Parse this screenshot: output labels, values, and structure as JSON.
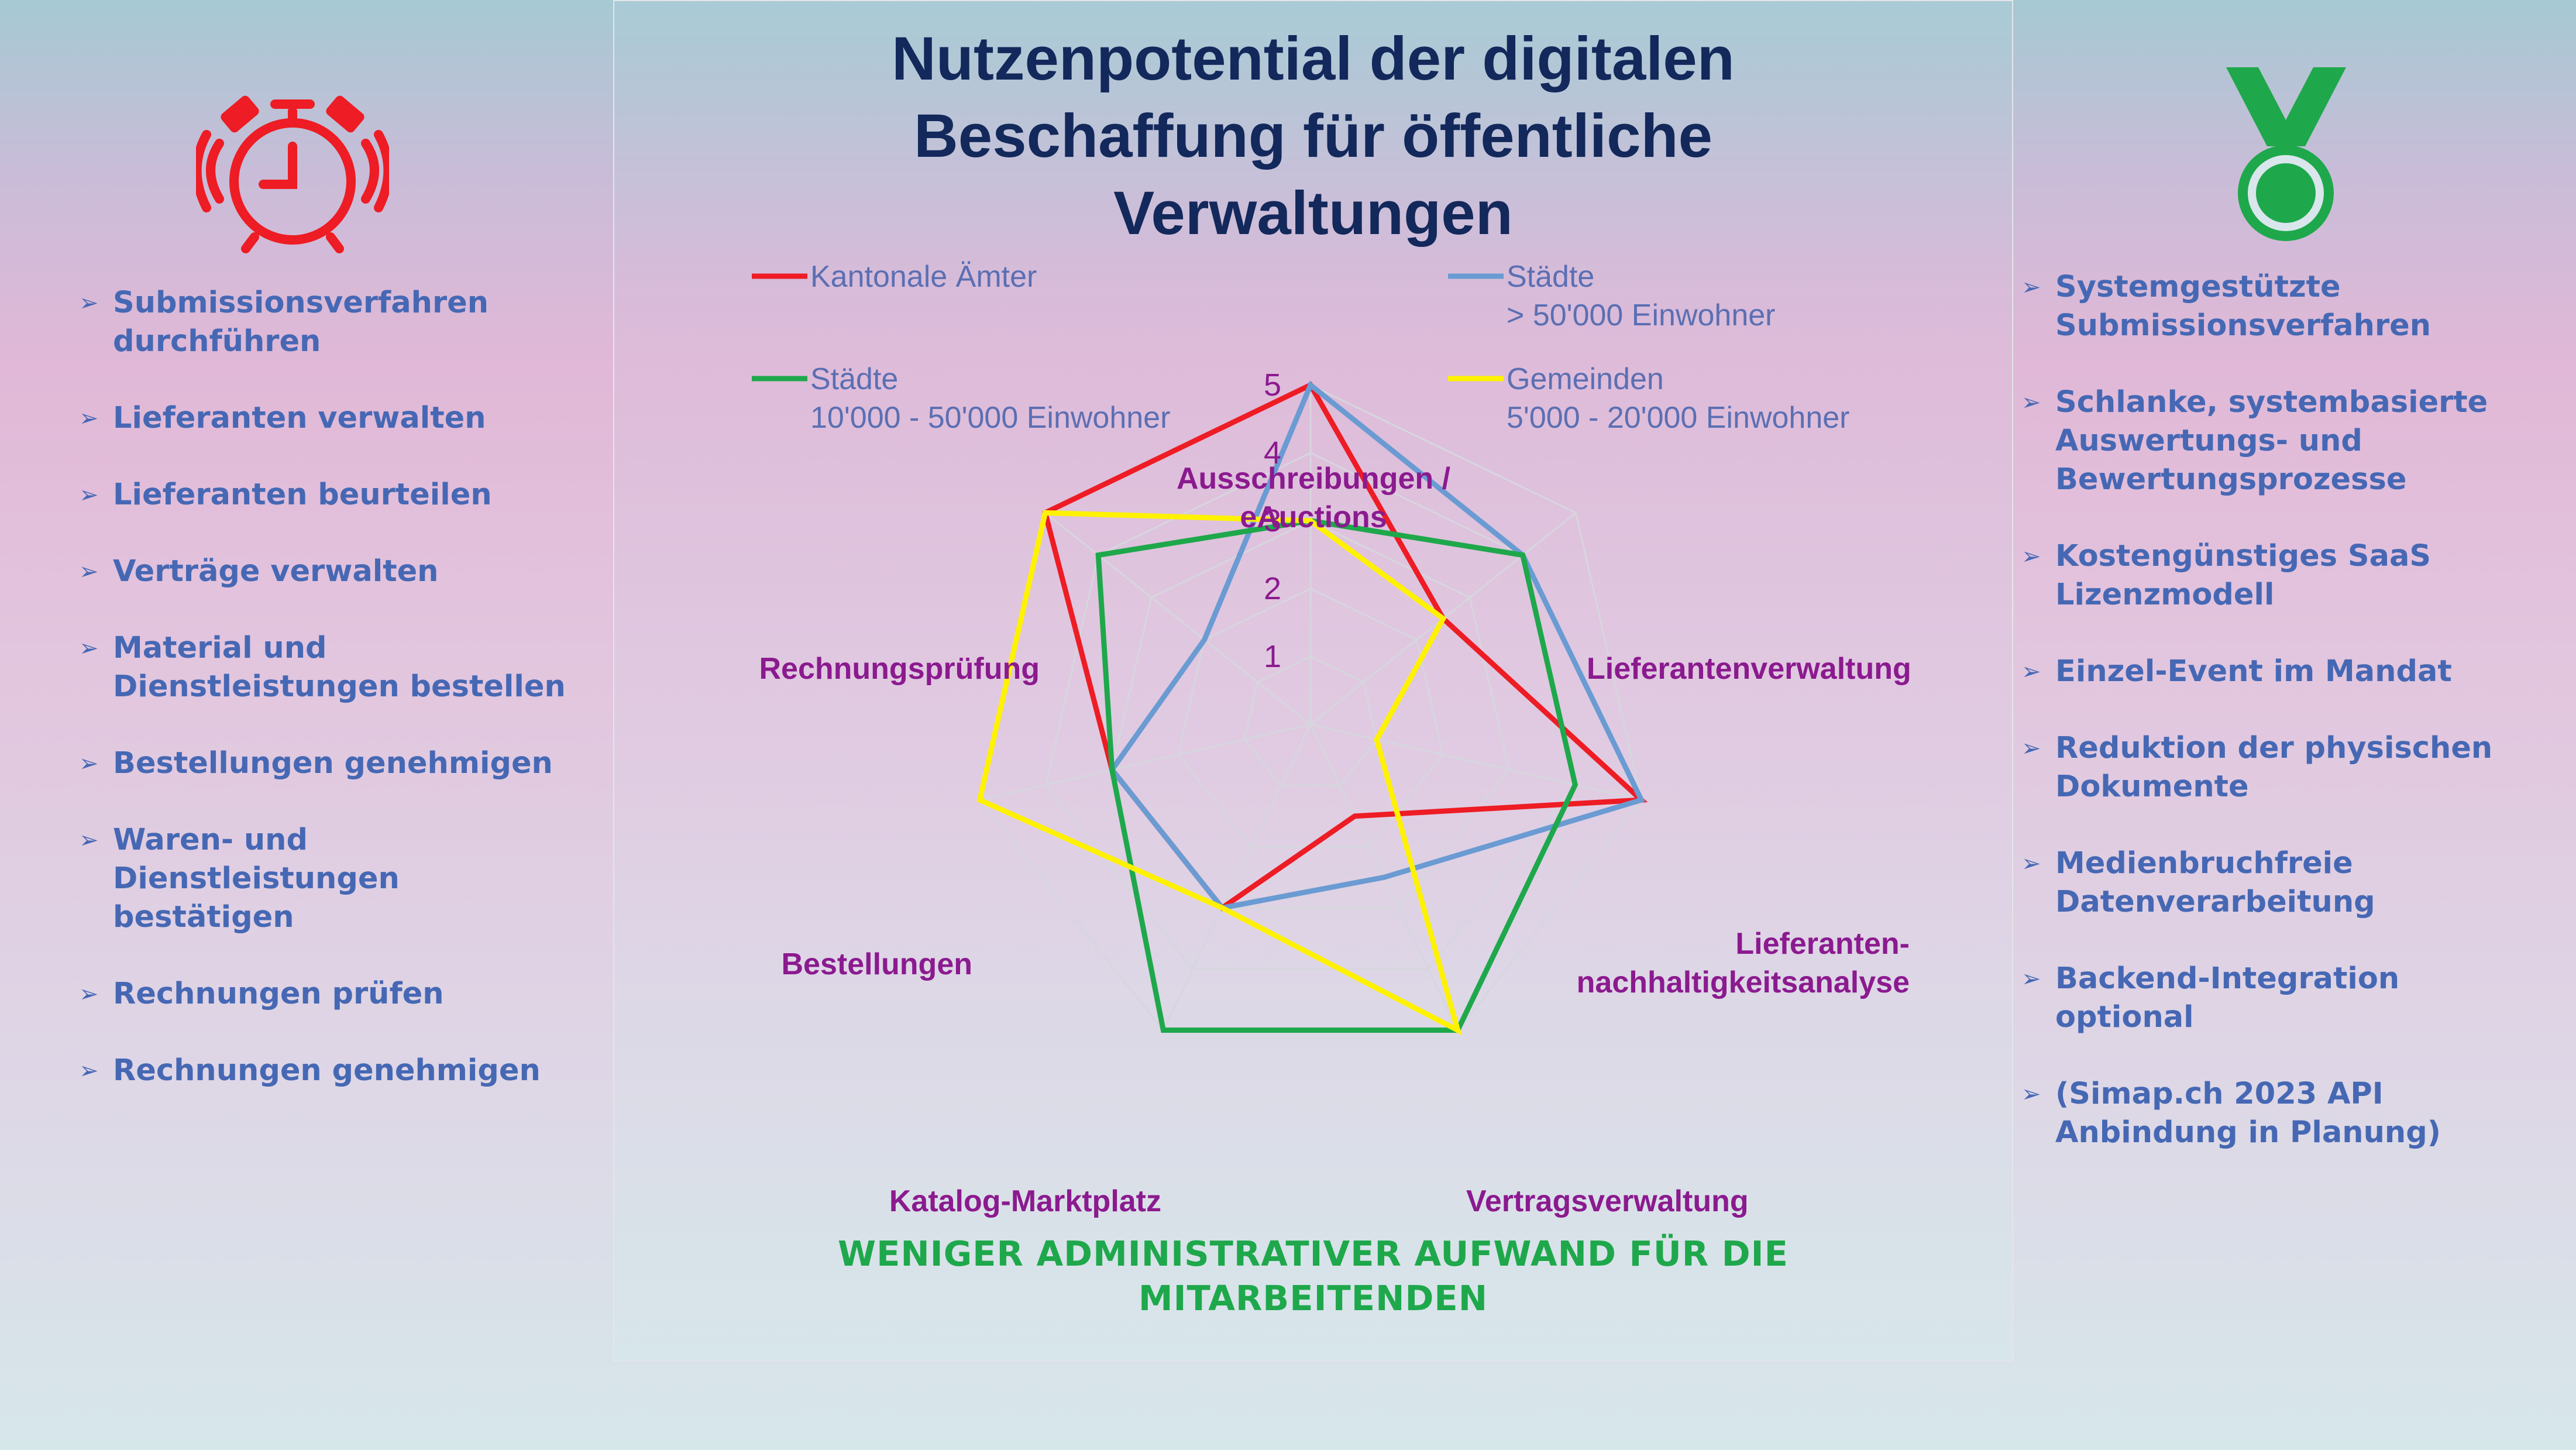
{
  "title_lines": [
    "Nutzenpotential der digitalen",
    "Beschaffung für öffentliche",
    "Verwaltungen"
  ],
  "left_icon": "alarm-clock-icon",
  "right_icon": "medal-icon",
  "left_list": [
    [
      "Submissionsverfahren",
      "durchführen"
    ],
    [
      "Lieferanten verwalten"
    ],
    [
      "Lieferanten beurteilen"
    ],
    [
      "Verträge verwalten"
    ],
    [
      "Material und",
      "Dienstleistungen bestellen"
    ],
    [
      "Bestellungen genehmigen"
    ],
    [
      "Waren- und",
      "Dienstleistungen",
      "bestätigen"
    ],
    [
      "Rechnungen prüfen"
    ],
    [
      "Rechnungen genehmigen"
    ]
  ],
  "right_list": [
    [
      "Systemgestützte",
      "Submissionsverfahren"
    ],
    [
      "Schlanke, systembasierte",
      "Auswertungs- und",
      "Bewertungsprozesse"
    ],
    [
      "Kostengünstiges SaaS",
      "Lizenzmodell"
    ],
    [
      "Einzel-Event im Mandat"
    ],
    [
      "Reduktion der physischen",
      "Dokumente"
    ],
    [
      "Medienbruchfreie",
      "Datenverarbeitung"
    ],
    [
      "Backend-Integration",
      "optional"
    ],
    [
      "(Simap.ch 2023 API",
      "Anbindung in Planung)"
    ]
  ],
  "footer_lines": [
    "WENIGER ADMINISTRATIVER AUFWAND FÜR DIE",
    "MITARBEITENDEN"
  ],
  "colors": {
    "kantonale": "#ee1c24",
    "staedte_gross": "#6a9bd2",
    "staedte_mittel": "#1ea84b",
    "gemeinden": "#fff200",
    "icon_red": "#ee1c24",
    "icon_green": "#1ea84b"
  },
  "chart_data": {
    "type": "radar",
    "axes": [
      [
        "Ausschreibungen /",
        "eAuctions"
      ],
      [
        "Lieferantenverwaltung"
      ],
      [
        "Lieferanten-",
        "nachhaltigkeitsanalyse"
      ],
      [
        "Vertragsverwaltung"
      ],
      [
        "Katalog-Marktplatz"
      ],
      [
        "Bestellungen"
      ],
      [
        "Rechnungsprüfung"
      ]
    ],
    "ticks": [
      1,
      2,
      3,
      4,
      5
    ],
    "range": [
      0,
      5
    ],
    "legend_position": "top",
    "series": [
      {
        "name": [
          "Kantonale Ämter"
        ],
        "color": "#ee1c24",
        "values": [
          5,
          2.5,
          5,
          1.5,
          3,
          3,
          5
        ]
      },
      {
        "name": [
          "Städte",
          "> 50'000 Einwohner"
        ],
        "color": "#6a9bd2",
        "values": [
          5,
          4,
          5,
          2.5,
          3,
          3,
          2
        ]
      },
      {
        "name": [
          "Städte",
          "10'000 - 50'000 Einwohner"
        ],
        "color": "#1ea84b",
        "values": [
          3,
          4,
          4,
          5,
          5,
          3,
          4
        ]
      },
      {
        "name": [
          "Gemeinden",
          "5'000 - 20'000 Einwohner"
        ],
        "color": "#fff200",
        "values": [
          3,
          2.5,
          1,
          5,
          3,
          5,
          5
        ]
      }
    ]
  }
}
